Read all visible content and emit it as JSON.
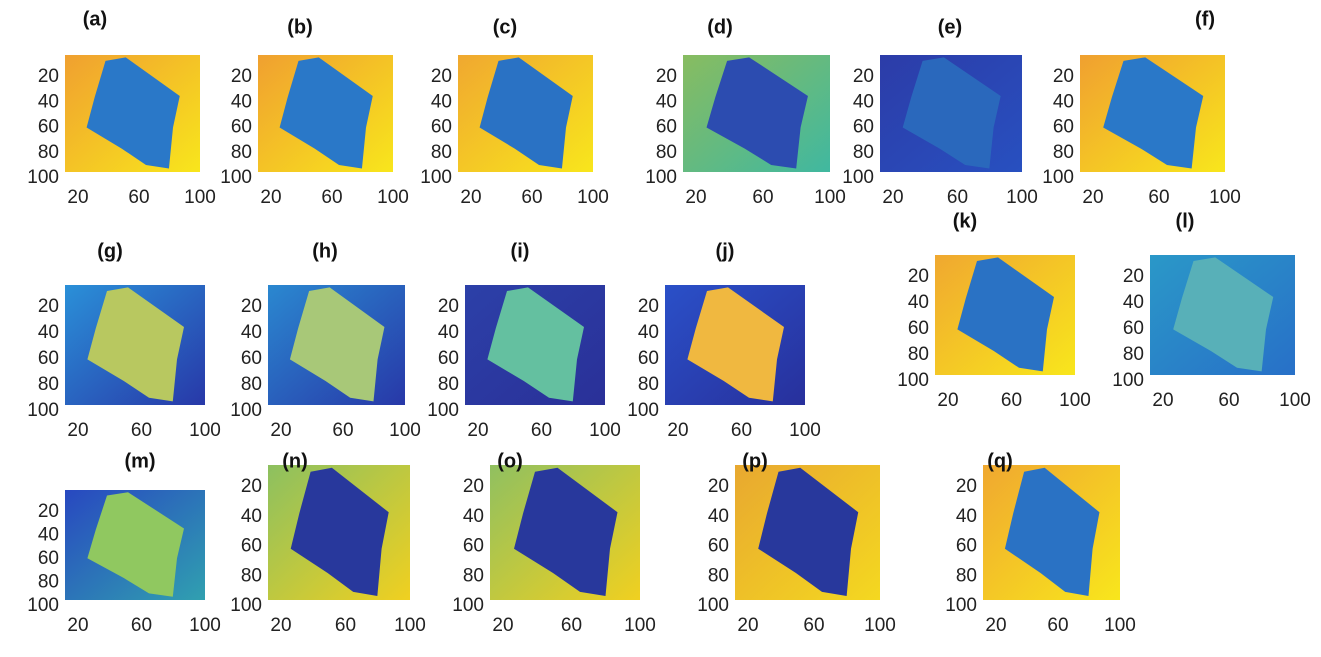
{
  "panels": [
    {
      "label": "(a)",
      "yticks": [
        20,
        40,
        60,
        80,
        100
      ],
      "xticks": [
        20,
        60,
        100
      ],
      "colors": [
        "#f0a030",
        "#f8e61c",
        "#2a78c8"
      ]
    },
    {
      "label": "(b)",
      "yticks": [
        20,
        40,
        60,
        80,
        100
      ],
      "xticks": [
        20,
        60,
        100
      ],
      "colors": [
        "#f0a030",
        "#f8e61c",
        "#2a78c8"
      ]
    },
    {
      "label": "(c)",
      "yticks": [
        20,
        40,
        60,
        80,
        100
      ],
      "xticks": [
        20,
        60,
        100
      ],
      "colors": [
        "#f0a830",
        "#f8e61c",
        "#2a72c4"
      ]
    },
    {
      "label": "(d)",
      "yticks": [
        20,
        40,
        60,
        80,
        100
      ],
      "xticks": [
        20,
        60,
        100
      ],
      "colors": [
        "#88bc60",
        "#40b8a0",
        "#2c4cb0"
      ]
    },
    {
      "label": "(e)",
      "yticks": [
        20,
        40,
        60,
        80,
        100
      ],
      "xticks": [
        20,
        60,
        100
      ],
      "colors": [
        "#2c3ca8",
        "#2850c0",
        "#2a68bc"
      ]
    },
    {
      "label": "(f)",
      "yticks": [
        20,
        40,
        60,
        80,
        100
      ],
      "xticks": [
        20,
        60,
        100
      ],
      "colors": [
        "#f0a030",
        "#f8e61c",
        "#2a78c8"
      ]
    },
    {
      "label": "(g)",
      "yticks": [
        20,
        40,
        60,
        80,
        100
      ],
      "xticks": [
        20,
        60,
        100
      ],
      "colors": [
        "#2a90d8",
        "#2838a8",
        "#b8c860"
      ]
    },
    {
      "label": "(h)",
      "yticks": [
        20,
        40,
        60,
        80,
        100
      ],
      "xticks": [
        20,
        60,
        100
      ],
      "colors": [
        "#2a88d0",
        "#2838a8",
        "#a8c878"
      ]
    },
    {
      "label": "(i)",
      "yticks": [
        20,
        40,
        60,
        80,
        100
      ],
      "xticks": [
        20,
        60,
        100
      ],
      "colors": [
        "#2c40a8",
        "#2a3098",
        "#64c0a0"
      ]
    },
    {
      "label": "(j)",
      "yticks": [
        20,
        40,
        60,
        80,
        100
      ],
      "xticks": [
        20,
        60,
        100
      ],
      "colors": [
        "#2a50c8",
        "#28309c",
        "#f0b840"
      ]
    },
    {
      "label": "(k)",
      "yticks": [
        20,
        40,
        60,
        80,
        100
      ],
      "xticks": [
        20,
        60,
        100
      ],
      "colors": [
        "#f0a830",
        "#f8e61c",
        "#2a72c4"
      ]
    },
    {
      "label": "(l)",
      "yticks": [
        20,
        40,
        60,
        80,
        100
      ],
      "xticks": [
        20,
        60,
        100
      ],
      "colors": [
        "#2a98c8",
        "#2870c8",
        "#58b0b8"
      ]
    },
    {
      "label": "(m)",
      "yticks": [
        20,
        40,
        60,
        80,
        100
      ],
      "xticks": [
        20,
        60,
        100
      ],
      "colors": [
        "#2848c0",
        "#30a0b0",
        "#90c860"
      ]
    },
    {
      "label": "(n)",
      "yticks": [
        20,
        40,
        60,
        80,
        100
      ],
      "xticks": [
        20,
        60,
        100
      ],
      "colors": [
        "#8cc060",
        "#f0d020",
        "#28389c"
      ]
    },
    {
      "label": "(o)",
      "yticks": [
        20,
        40,
        60,
        80,
        100
      ],
      "xticks": [
        20,
        60,
        100
      ],
      "colors": [
        "#90c060",
        "#f0d020",
        "#28389c"
      ]
    },
    {
      "label": "(p)",
      "yticks": [
        20,
        40,
        60,
        80,
        100
      ],
      "xticks": [
        20,
        60,
        100
      ],
      "colors": [
        "#e8a830",
        "#f4d820",
        "#28389c"
      ]
    },
    {
      "label": "(q)",
      "yticks": [
        20,
        40,
        60,
        80,
        100
      ],
      "xticks": [
        20,
        60,
        100
      ],
      "colors": [
        "#f0a830",
        "#f8e61c",
        "#2a72c4"
      ]
    }
  ]
}
